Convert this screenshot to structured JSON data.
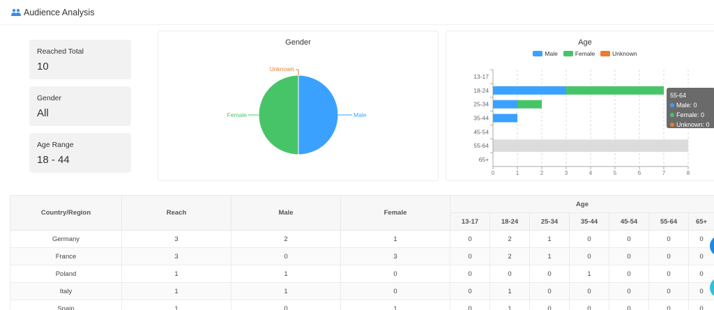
{
  "header": {
    "title": "Audience Analysis",
    "icon": "users-icon"
  },
  "stats": [
    {
      "label": "Reached Total",
      "value": "10"
    },
    {
      "label": "Gender",
      "value": "All"
    },
    {
      "label": "Age Range",
      "value": "18 - 44"
    }
  ],
  "gender_chart": {
    "title": "Gender",
    "labels": {
      "male": "Male",
      "female": "Female",
      "unknown": "Unknown"
    }
  },
  "age_chart": {
    "title": "Age",
    "legend": [
      "Male",
      "Female",
      "Unknown"
    ]
  },
  "tooltip": {
    "title": "55-64",
    "male": "Male: 0",
    "female": "Female: 0",
    "unknown": "Unknown: 0"
  },
  "chart_data": [
    {
      "type": "pie",
      "title": "Gender",
      "categories": [
        "Male",
        "Female",
        "Unknown"
      ],
      "values": [
        5,
        5,
        0
      ],
      "colors": [
        "#3ba1ff",
        "#48c468",
        "#f07b2e"
      ]
    },
    {
      "type": "bar",
      "orientation": "horizontal",
      "stacked": true,
      "title": "Age",
      "categories": [
        "13-17",
        "18-24",
        "25-34",
        "35-44",
        "45-54",
        "55-64",
        "65+"
      ],
      "series": [
        {
          "name": "Male",
          "values": [
            0,
            3,
            1,
            1,
            0,
            0,
            0
          ],
          "color": "#3ba1ff"
        },
        {
          "name": "Female",
          "values": [
            0,
            4,
            1,
            0,
            0,
            0,
            0
          ],
          "color": "#48c468"
        },
        {
          "name": "Unknown",
          "values": [
            0,
            0,
            0,
            0,
            0,
            0,
            0
          ],
          "color": "#f07b2e"
        }
      ],
      "xlim": [
        0,
        8
      ],
      "xticks": [
        "0",
        "1",
        "2",
        "3",
        "4",
        "5",
        "6",
        "7",
        "8"
      ],
      "highlighted_category": "55-64",
      "legend_position": "top-center"
    }
  ],
  "table": {
    "headers": {
      "country": "Country/Region",
      "reach": "Reach",
      "male": "Male",
      "female": "Female",
      "age": "Age"
    },
    "age_headers": [
      "13-17",
      "18-24",
      "25-34",
      "35-44",
      "45-54",
      "55-64",
      "65+"
    ],
    "rows": [
      [
        "Germany",
        "3",
        "2",
        "1",
        "0",
        "2",
        "1",
        "0",
        "0",
        "0",
        "0"
      ],
      [
        "France",
        "3",
        "0",
        "3",
        "0",
        "2",
        "1",
        "0",
        "0",
        "0",
        "0"
      ],
      [
        "Poland",
        "1",
        "1",
        "0",
        "0",
        "0",
        "0",
        "1",
        "0",
        "0",
        "0"
      ],
      [
        "Italy",
        "1",
        "1",
        "0",
        "0",
        "1",
        "0",
        "0",
        "0",
        "0",
        "0"
      ],
      [
        "Spain",
        "1",
        "0",
        "1",
        "0",
        "1",
        "0",
        "0",
        "0",
        "0",
        "0"
      ]
    ]
  }
}
